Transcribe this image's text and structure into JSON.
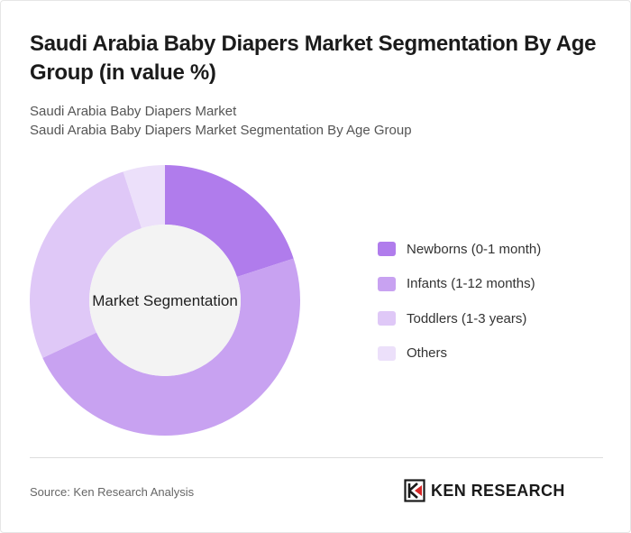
{
  "header": {
    "title": "Saudi Arabia Baby Diapers Market Segmentation By Age Group (in value %)",
    "subtitle_line1": "Saudi Arabia Baby Diapers Market",
    "subtitle_line2": "Saudi Arabia Baby Diapers Market Segmentation By Age Group"
  },
  "chart_data": {
    "type": "pie",
    "style": "donut",
    "center_label": "Market Segmentation",
    "categories": [
      "Newborns (0-1 month)",
      "Infants (1-12 months)",
      "Toddlers (1-3 years)",
      "Others"
    ],
    "values": [
      20,
      48,
      27,
      5
    ],
    "colors": [
      "#b07cec",
      "#c8a2f1",
      "#dfc8f7",
      "#ece0fa"
    ],
    "legend_position": "right"
  },
  "footer": {
    "source": "Source: Ken Research Analysis",
    "logo_text": "KEN RESEARCH",
    "logo_icon": "ken-research-logo-icon"
  }
}
